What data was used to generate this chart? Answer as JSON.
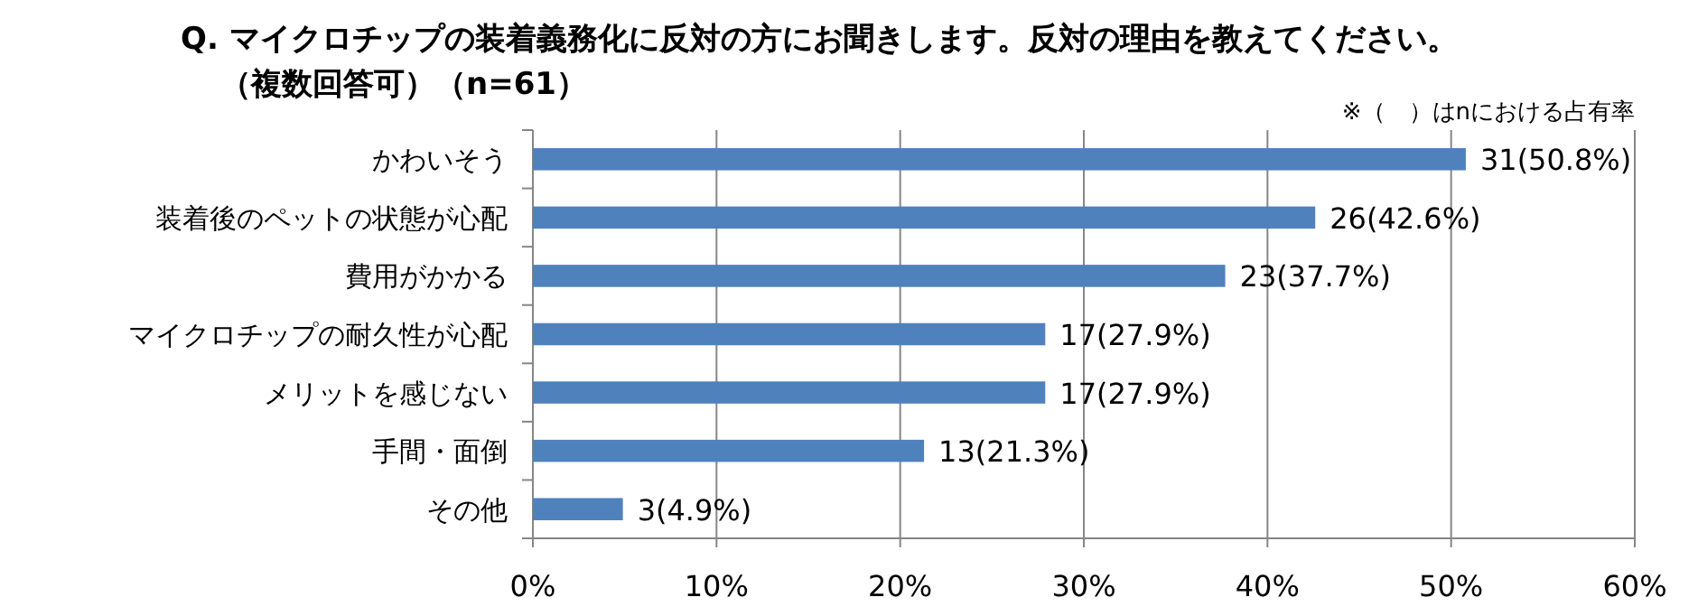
{
  "chart_data": {
    "type": "bar",
    "orientation": "horizontal",
    "title": "Q. マイクロチップの装着義務化に反対の方にお聞きします。反対の理由を教えてください。",
    "subtitle": "（複数回答可）（n=61）",
    "annotations": [
      "※（　）はnにおける占有率"
    ],
    "categories": [
      "かわいそう",
      "装着後のペットの状態が心配",
      "費用がかかる",
      "マイクロチップの耐久性が心配",
      "メリットを感じない",
      "手間・面倒",
      "その他"
    ],
    "values": [
      50.8,
      42.6,
      37.7,
      27.9,
      27.9,
      21.3,
      4.9
    ],
    "value_labels": [
      "31(50.8%)",
      "26(42.6%)",
      "23(37.7%)",
      "17(27.9%)",
      "17(27.9%)",
      "13(21.3%)",
      "3(4.9%)"
    ],
    "color": "#4f81bd",
    "xlim": [
      0,
      60
    ],
    "xticks": [
      {
        "value": 0,
        "label": "0%"
      },
      {
        "value": 10,
        "label": "10%"
      },
      {
        "value": 20,
        "label": "20%"
      },
      {
        "value": 30,
        "label": "30%"
      },
      {
        "value": 40,
        "label": "40%"
      },
      {
        "value": 50,
        "label": "50%"
      },
      {
        "value": 60,
        "label": "60%"
      }
    ],
    "grid": "x"
  }
}
